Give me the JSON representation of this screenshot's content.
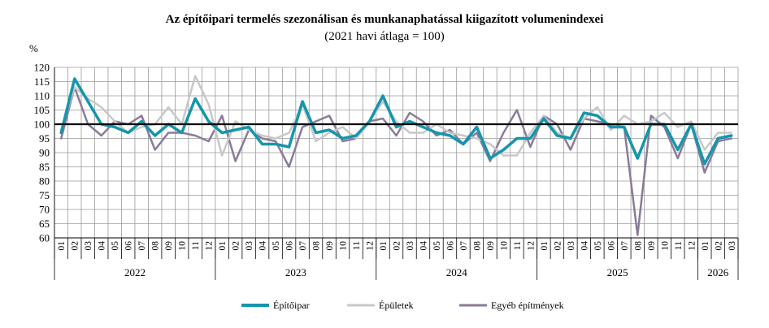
{
  "chart_data": {
    "type": "line",
    "title": "Az építőipari  termelés szezonálisan és munkanaphatással kiigazított volumenindexei",
    "subtitle": "(2021 havi átlaga = 100)",
    "ylabel": "%",
    "ylim": [
      60,
      120
    ],
    "yticks": [
      60,
      65,
      70,
      75,
      80,
      85,
      90,
      95,
      100,
      105,
      110,
      115,
      120
    ],
    "grid": true,
    "reference_line": 100,
    "legend_position": "bottom",
    "months": [
      "01",
      "02",
      "03",
      "04",
      "05",
      "06",
      "07",
      "08",
      "09",
      "10",
      "11",
      "12",
      "01",
      "02",
      "03",
      "04",
      "05",
      "06",
      "07",
      "08",
      "09",
      "10",
      "11",
      "12",
      "01",
      "02",
      "03",
      "04",
      "05",
      "06",
      "07",
      "08",
      "09",
      "10",
      "11",
      "12",
      "01",
      "02",
      "03",
      "04",
      "05",
      "06",
      "07",
      "08",
      "09",
      "10",
      "11",
      "12",
      "01",
      "02",
      "03"
    ],
    "years": [
      {
        "label": "2022",
        "count": 12
      },
      {
        "label": "2023",
        "count": 12
      },
      {
        "label": "2024",
        "count": 12
      },
      {
        "label": "2025",
        "count": 12
      },
      {
        "label": "2026",
        "count": 3
      }
    ],
    "series": [
      {
        "name": "Építőipar",
        "color": "#1596ac",
        "width": 3.5,
        "values": [
          97,
          116,
          108,
          100,
          99,
          97,
          101,
          96,
          100,
          97,
          109,
          101,
          97,
          98,
          99,
          93,
          93,
          92,
          108,
          97,
          98,
          95,
          96,
          101,
          110,
          99,
          101,
          99,
          97,
          96,
          93,
          99,
          88,
          91,
          95,
          95,
          102,
          96,
          95,
          104,
          103,
          99,
          99,
          88,
          100,
          100,
          91,
          100,
          86,
          95,
          96
        ]
      },
      {
        "name": "Épületek",
        "color": "#c8c8c8",
        "width": 2.5,
        "values": [
          98,
          113,
          109,
          106,
          101,
          97,
          99,
          100,
          106,
          100,
          117,
          107,
          89,
          101,
          98,
          96,
          95,
          97,
          107,
          94,
          97,
          99,
          95,
          101,
          108,
          101,
          97,
          97,
          100,
          97,
          96,
          95,
          93,
          89,
          89,
          97,
          103,
          97,
          95,
          102,
          106,
          98,
          103,
          100,
          101,
          104,
          99,
          101,
          91,
          97,
          97
        ]
      },
      {
        "name": "Egyéb építmények",
        "color": "#8a7b99",
        "width": 2.5,
        "values": [
          95,
          113,
          100,
          96,
          101,
          100,
          103,
          91,
          97,
          97,
          96,
          94,
          103,
          87,
          98,
          95,
          94,
          85,
          99,
          101,
          103,
          94,
          95,
          101,
          102,
          96,
          104,
          101,
          96,
          98,
          93,
          97,
          87,
          97,
          105,
          92,
          103,
          100,
          91,
          102,
          101,
          100,
          99,
          61,
          103,
          99,
          88,
          100,
          83,
          94,
          95
        ]
      }
    ]
  }
}
